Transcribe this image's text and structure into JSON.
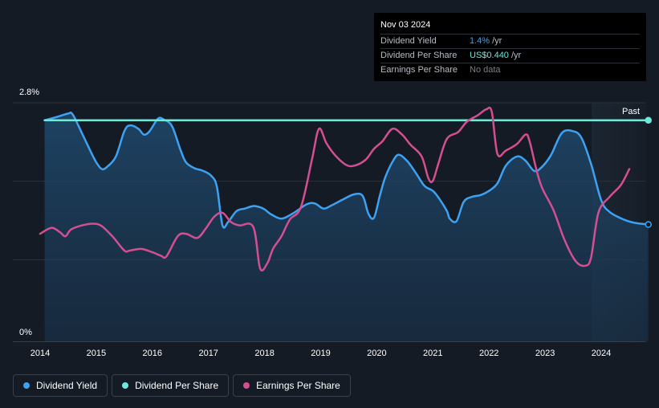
{
  "chart_data": {
    "type": "line",
    "x_range": [
      2013.93,
      2024.84
    ],
    "ylim": [
      0,
      2.8
    ],
    "y_ticks": [
      {
        "value": 2.8,
        "label": "2.8%"
      },
      {
        "value": 0,
        "label": "0%"
      }
    ],
    "x_ticks": [
      {
        "value": 2014,
        "label": "2014"
      },
      {
        "value": 2015,
        "label": "2015"
      },
      {
        "value": 2016,
        "label": "2016"
      },
      {
        "value": 2017,
        "label": "2017"
      },
      {
        "value": 2018,
        "label": "2018"
      },
      {
        "value": 2019,
        "label": "2019"
      },
      {
        "value": 2020,
        "label": "2020"
      },
      {
        "value": 2021,
        "label": "2021"
      },
      {
        "value": 2022,
        "label": "2022"
      },
      {
        "value": 2023,
        "label": "2023"
      },
      {
        "value": 2024,
        "label": "2024"
      }
    ],
    "past_start": 2023.83,
    "past_label": "Past",
    "series": [
      {
        "name": "Dividend Yield",
        "color": "#3ea2f2",
        "area": true,
        "points": [
          [
            2014.08,
            2.63
          ],
          [
            2014.3,
            2.67
          ],
          [
            2014.5,
            2.71
          ],
          [
            2014.58,
            2.7
          ],
          [
            2014.75,
            2.47
          ],
          [
            2014.9,
            2.26
          ],
          [
            2015.0,
            2.13
          ],
          [
            2015.1,
            2.05
          ],
          [
            2015.2,
            2.08
          ],
          [
            2015.35,
            2.2
          ],
          [
            2015.5,
            2.5
          ],
          [
            2015.6,
            2.57
          ],
          [
            2015.75,
            2.53
          ],
          [
            2015.85,
            2.46
          ],
          [
            2015.95,
            2.5
          ],
          [
            2016.1,
            2.65
          ],
          [
            2016.2,
            2.64
          ],
          [
            2016.35,
            2.56
          ],
          [
            2016.5,
            2.28
          ],
          [
            2016.6,
            2.13
          ],
          [
            2016.75,
            2.06
          ],
          [
            2016.9,
            2.03
          ],
          [
            2017.05,
            1.97
          ],
          [
            2017.15,
            1.84
          ],
          [
            2017.25,
            1.38
          ],
          [
            2017.35,
            1.42
          ],
          [
            2017.5,
            1.55
          ],
          [
            2017.65,
            1.58
          ],
          [
            2017.8,
            1.61
          ],
          [
            2017.9,
            1.6
          ],
          [
            2018.0,
            1.57
          ],
          [
            2018.12,
            1.51
          ],
          [
            2018.3,
            1.46
          ],
          [
            2018.5,
            1.52
          ],
          [
            2018.75,
            1.63
          ],
          [
            2018.9,
            1.64
          ],
          [
            2019.05,
            1.58
          ],
          [
            2019.2,
            1.62
          ],
          [
            2019.4,
            1.69
          ],
          [
            2019.6,
            1.75
          ],
          [
            2019.75,
            1.73
          ],
          [
            2019.85,
            1.52
          ],
          [
            2019.95,
            1.47
          ],
          [
            2020.05,
            1.72
          ],
          [
            2020.15,
            1.95
          ],
          [
            2020.3,
            2.16
          ],
          [
            2020.4,
            2.22
          ],
          [
            2020.55,
            2.14
          ],
          [
            2020.7,
            2.0
          ],
          [
            2020.85,
            1.85
          ],
          [
            2021.0,
            1.79
          ],
          [
            2021.1,
            1.71
          ],
          [
            2021.25,
            1.55
          ],
          [
            2021.3,
            1.46
          ],
          [
            2021.42,
            1.43
          ],
          [
            2021.55,
            1.66
          ],
          [
            2021.7,
            1.72
          ],
          [
            2021.85,
            1.74
          ],
          [
            2022.0,
            1.79
          ],
          [
            2022.15,
            1.88
          ],
          [
            2022.3,
            2.09
          ],
          [
            2022.5,
            2.2
          ],
          [
            2022.65,
            2.15
          ],
          [
            2022.8,
            2.03
          ],
          [
            2022.92,
            2.06
          ],
          [
            2023.1,
            2.21
          ],
          [
            2023.3,
            2.48
          ],
          [
            2023.5,
            2.5
          ],
          [
            2023.65,
            2.42
          ],
          [
            2023.82,
            2.11
          ],
          [
            2024.0,
            1.68
          ],
          [
            2024.15,
            1.54
          ],
          [
            2024.4,
            1.45
          ],
          [
            2024.6,
            1.41
          ],
          [
            2024.84,
            1.39
          ]
        ]
      },
      {
        "name": "Dividend Per Share",
        "color": "#6ee8d8",
        "area": false,
        "points": [
          [
            2014.08,
            2.63
          ],
          [
            2024.84,
            2.63
          ]
        ]
      },
      {
        "name": "Earnings Per Share",
        "color": "#d44f92",
        "area": false,
        "points": [
          [
            2014.0,
            1.28
          ],
          [
            2014.2,
            1.35
          ],
          [
            2014.35,
            1.3
          ],
          [
            2014.45,
            1.25
          ],
          [
            2014.55,
            1.33
          ],
          [
            2014.75,
            1.38
          ],
          [
            2014.95,
            1.4
          ],
          [
            2015.1,
            1.37
          ],
          [
            2015.3,
            1.24
          ],
          [
            2015.5,
            1.08
          ],
          [
            2015.6,
            1.08
          ],
          [
            2015.8,
            1.1
          ],
          [
            2016.0,
            1.06
          ],
          [
            2016.15,
            1.02
          ],
          [
            2016.25,
            1.01
          ],
          [
            2016.45,
            1.25
          ],
          [
            2016.6,
            1.28
          ],
          [
            2016.8,
            1.23
          ],
          [
            2016.95,
            1.34
          ],
          [
            2017.1,
            1.48
          ],
          [
            2017.25,
            1.53
          ],
          [
            2017.4,
            1.42
          ],
          [
            2017.55,
            1.38
          ],
          [
            2017.8,
            1.36
          ],
          [
            2017.92,
            0.87
          ],
          [
            2018.05,
            0.93
          ],
          [
            2018.15,
            1.1
          ],
          [
            2018.3,
            1.25
          ],
          [
            2018.45,
            1.45
          ],
          [
            2018.65,
            1.6
          ],
          [
            2018.85,
            2.18
          ],
          [
            2018.97,
            2.53
          ],
          [
            2019.1,
            2.36
          ],
          [
            2019.25,
            2.22
          ],
          [
            2019.45,
            2.1
          ],
          [
            2019.6,
            2.09
          ],
          [
            2019.8,
            2.16
          ],
          [
            2019.95,
            2.29
          ],
          [
            2020.1,
            2.38
          ],
          [
            2020.28,
            2.53
          ],
          [
            2020.45,
            2.46
          ],
          [
            2020.6,
            2.34
          ],
          [
            2020.8,
            2.2
          ],
          [
            2020.92,
            1.94
          ],
          [
            2021.0,
            1.91
          ],
          [
            2021.1,
            2.12
          ],
          [
            2021.25,
            2.41
          ],
          [
            2021.45,
            2.49
          ],
          [
            2021.6,
            2.61
          ],
          [
            2021.8,
            2.69
          ],
          [
            2021.95,
            2.76
          ],
          [
            2022.05,
            2.73
          ],
          [
            2022.15,
            2.23
          ],
          [
            2022.3,
            2.27
          ],
          [
            2022.5,
            2.35
          ],
          [
            2022.65,
            2.46
          ],
          [
            2022.72,
            2.39
          ],
          [
            2022.85,
            2.03
          ],
          [
            2022.95,
            1.82
          ],
          [
            2023.15,
            1.56
          ],
          [
            2023.35,
            1.2
          ],
          [
            2023.55,
            0.95
          ],
          [
            2023.72,
            0.9
          ],
          [
            2023.82,
            1.0
          ],
          [
            2023.95,
            1.53
          ],
          [
            2024.15,
            1.72
          ],
          [
            2024.35,
            1.86
          ],
          [
            2024.5,
            2.05
          ]
        ]
      }
    ],
    "end_markers": [
      {
        "series": "Dividend Per Share",
        "x": 2024.84,
        "y": 2.63
      },
      {
        "series": "Dividend Yield",
        "x": 2024.84,
        "y": 1.39
      }
    ]
  },
  "tooltip": {
    "date": "Nov 03 2024",
    "rows": [
      {
        "label": "Dividend Yield",
        "value": "1.4%",
        "unit": "/yr"
      },
      {
        "label": "Dividend Per Share",
        "value": "US$0.440",
        "unit": "/yr"
      },
      {
        "label": "Earnings Per Share",
        "value": "No data",
        "unit": ""
      }
    ]
  },
  "legend": [
    {
      "label": "Dividend Yield",
      "color": "#3ea2f2"
    },
    {
      "label": "Dividend Per Share",
      "color": "#6ee8d8"
    },
    {
      "label": "Earnings Per Share",
      "color": "#d44f92"
    }
  ]
}
